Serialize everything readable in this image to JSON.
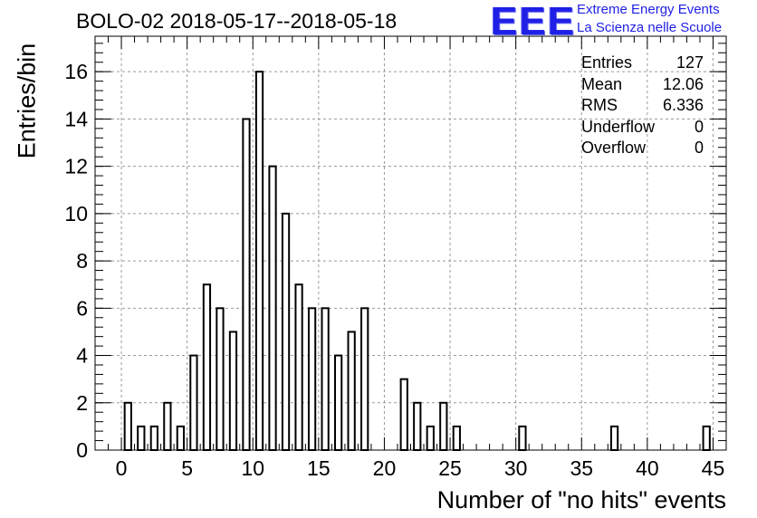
{
  "chart_data": {
    "type": "bar",
    "title": "BOLO-02 2018-05-17--2018-05-18",
    "xlabel": "Number of \"no hits\" events",
    "ylabel": "Entries/bin",
    "xlim": [
      -2,
      46
    ],
    "ylim": [
      0,
      17.5
    ],
    "bin_width": 1,
    "x": [
      0,
      1,
      2,
      3,
      4,
      5,
      6,
      7,
      8,
      9,
      10,
      11,
      12,
      13,
      14,
      15,
      16,
      17,
      18,
      21,
      22,
      23,
      24,
      25,
      30,
      37,
      44
    ],
    "values": [
      2,
      1,
      1,
      2,
      1,
      4,
      7,
      6,
      5,
      14,
      16,
      12,
      10,
      7,
      6,
      6,
      4,
      5,
      6,
      3,
      2,
      1,
      2,
      1,
      1,
      1,
      1
    ],
    "xticks": [
      "0",
      "5",
      "10",
      "15",
      "20",
      "25",
      "30",
      "35",
      "40",
      "45"
    ],
    "yticks": [
      "0",
      "2",
      "4",
      "6",
      "8",
      "10",
      "12",
      "14",
      "16"
    ],
    "grid": true,
    "stats": [
      {
        "label": "Entries",
        "value": "127"
      },
      {
        "label": "Mean",
        "value": "12.06"
      },
      {
        "label": "RMS",
        "value": "6.336"
      },
      {
        "label": "Underflow",
        "value": "0"
      },
      {
        "label": "Overflow",
        "value": "0"
      }
    ]
  },
  "logo": {
    "mark": "EEE",
    "line1": "Extreme Energy Events",
    "line2": "La Scienza nelle Scuole",
    "color": "#1f1fe6"
  }
}
